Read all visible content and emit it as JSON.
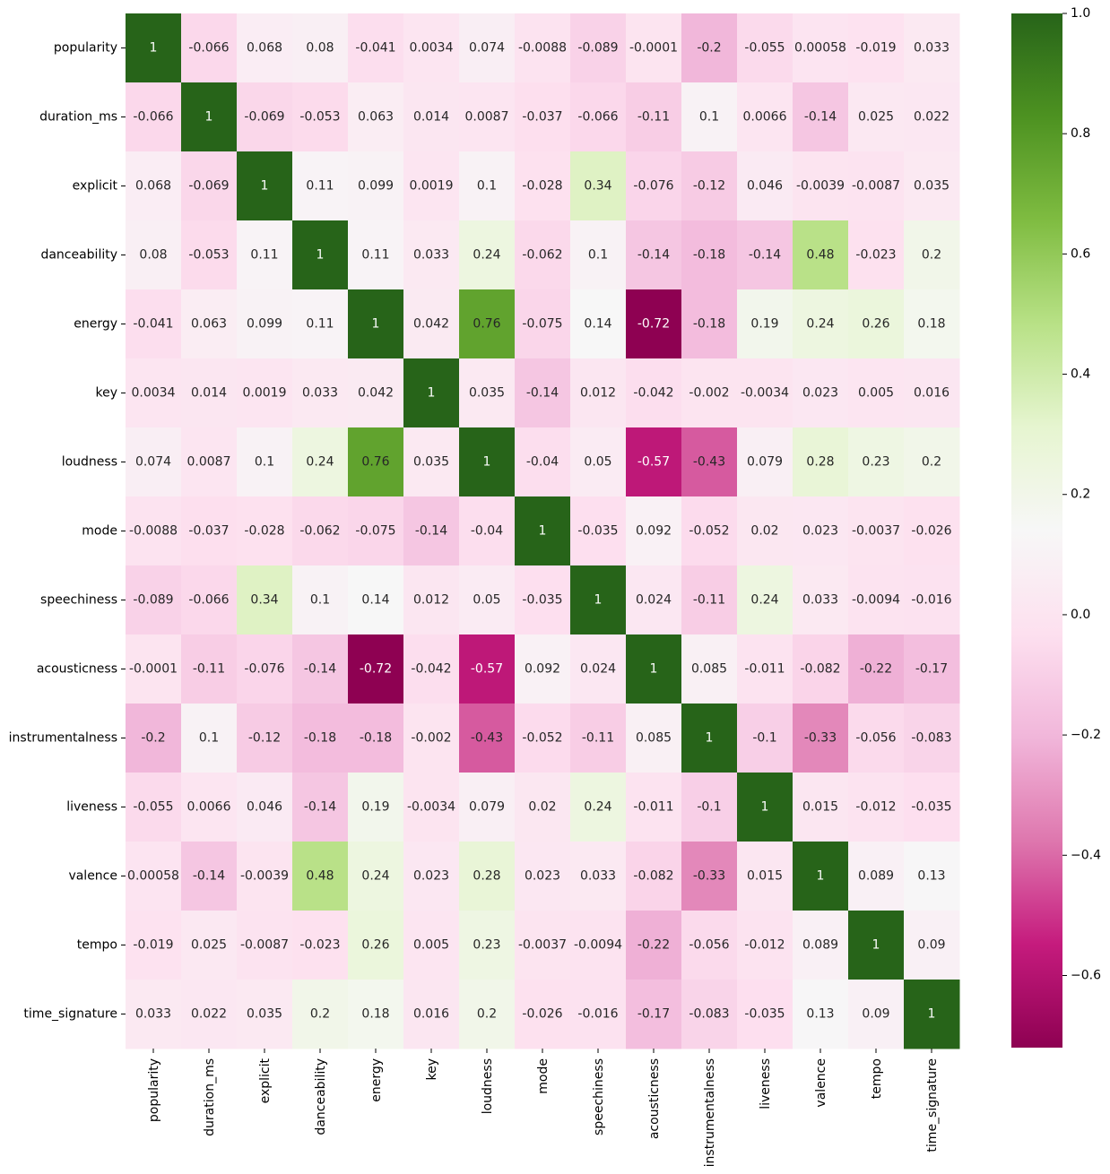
{
  "chart_data": {
    "type": "heatmap",
    "title": "",
    "xlabel": "",
    "ylabel": "",
    "colormap": "PiYG",
    "value_range": [
      -0.72,
      1.0
    ],
    "variables": [
      "popularity",
      "duration_ms",
      "explicit",
      "danceability",
      "energy",
      "key",
      "loudness",
      "mode",
      "speechiness",
      "acousticness",
      "instrumentalness",
      "liveness",
      "valence",
      "tempo",
      "time_signature"
    ],
    "values": [
      [
        1,
        -0.066,
        0.068,
        0.08,
        -0.041,
        0.0034,
        0.074,
        -0.0088,
        -0.089,
        -0.0001,
        -0.2,
        -0.055,
        0.00058,
        -0.019,
        0.033
      ],
      [
        -0.066,
        1,
        -0.069,
        -0.053,
        0.063,
        0.014,
        0.0087,
        -0.037,
        -0.066,
        -0.11,
        0.1,
        0.0066,
        -0.14,
        0.025,
        0.022
      ],
      [
        0.068,
        -0.069,
        1,
        0.11,
        0.099,
        0.0019,
        0.1,
        -0.028,
        0.34,
        -0.076,
        -0.12,
        0.046,
        -0.0039,
        -0.0087,
        0.035
      ],
      [
        0.08,
        -0.053,
        0.11,
        1,
        0.11,
        0.033,
        0.24,
        -0.062,
        0.1,
        -0.14,
        -0.18,
        -0.14,
        0.48,
        -0.023,
        0.2
      ],
      [
        -0.041,
        0.063,
        0.099,
        0.11,
        1,
        0.042,
        0.76,
        -0.075,
        0.14,
        -0.72,
        -0.18,
        0.19,
        0.24,
        0.26,
        0.18
      ],
      [
        0.0034,
        0.014,
        0.0019,
        0.033,
        0.042,
        1,
        0.035,
        -0.14,
        0.012,
        -0.042,
        -0.002,
        -0.0034,
        0.023,
        0.005,
        0.016
      ],
      [
        0.074,
        0.0087,
        0.1,
        0.24,
        0.76,
        0.035,
        1,
        -0.04,
        0.05,
        -0.57,
        -0.43,
        0.079,
        0.28,
        0.23,
        0.2
      ],
      [
        -0.0088,
        -0.037,
        -0.028,
        -0.062,
        -0.075,
        -0.14,
        -0.04,
        1,
        -0.035,
        0.092,
        -0.052,
        0.02,
        0.023,
        -0.0037,
        -0.026
      ],
      [
        -0.089,
        -0.066,
        0.34,
        0.1,
        0.14,
        0.012,
        0.05,
        -0.035,
        1,
        0.024,
        -0.11,
        0.24,
        0.033,
        -0.0094,
        -0.016
      ],
      [
        -0.0001,
        -0.11,
        -0.076,
        -0.14,
        -0.72,
        -0.042,
        -0.57,
        0.092,
        0.024,
        1,
        0.085,
        -0.011,
        -0.082,
        -0.22,
        -0.17
      ],
      [
        -0.2,
        0.1,
        -0.12,
        -0.18,
        -0.18,
        -0.002,
        -0.43,
        -0.052,
        -0.11,
        0.085,
        1,
        -0.1,
        -0.33,
        -0.056,
        -0.083
      ],
      [
        -0.055,
        0.0066,
        0.046,
        -0.14,
        0.19,
        -0.0034,
        0.079,
        0.02,
        0.24,
        -0.011,
        -0.1,
        1,
        0.015,
        -0.012,
        -0.035
      ],
      [
        0.00058,
        -0.14,
        -0.0039,
        0.48,
        0.24,
        0.023,
        0.28,
        0.023,
        0.033,
        -0.082,
        -0.33,
        0.015,
        1,
        0.089,
        0.13
      ],
      [
        -0.019,
        0.025,
        -0.0087,
        -0.023,
        0.26,
        0.005,
        0.23,
        -0.0037,
        -0.0094,
        -0.22,
        -0.056,
        -0.012,
        0.089,
        1,
        0.09
      ],
      [
        0.033,
        0.022,
        0.035,
        0.2,
        0.18,
        0.016,
        0.2,
        -0.026,
        -0.016,
        -0.17,
        -0.083,
        -0.035,
        0.13,
        0.09,
        1
      ]
    ],
    "colorbar_ticks": [
      1.0,
      0.8,
      0.6,
      0.4,
      0.2,
      0.0,
      -0.2,
      -0.4,
      -0.6
    ],
    "colorbar_tick_labels": [
      "1.0",
      "0.8",
      "0.6",
      "0.4",
      "0.2",
      "0.0",
      "−0.2",
      "−0.4",
      "−0.6"
    ],
    "annotations_shown": true,
    "grid": false
  }
}
